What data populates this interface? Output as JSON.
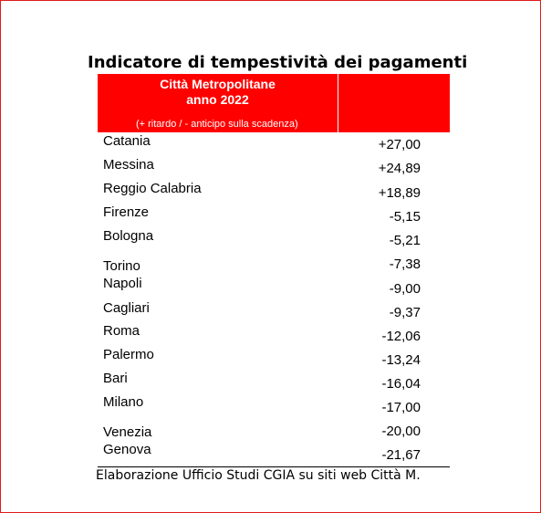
{
  "title": "Indicatore di tempestività dei pagamenti",
  "header": {
    "line1": "Città Metropolitane",
    "line2": "anno 2022",
    "line3": "(+ ritardo / - anticipo sulla scadenza)",
    "bg_color": "#ff0000"
  },
  "rows": [
    {
      "city": "Catania",
      "value": "+27,00"
    },
    {
      "city": "Messina",
      "value": "+24,89"
    },
    {
      "city": "Reggio Calabria",
      "value": "+18,89"
    },
    {
      "city": "Firenze",
      "value": "-5,15"
    },
    {
      "city": "Bologna",
      "value": "-5,21"
    },
    {
      "city": "Torino",
      "value": "-7,38"
    },
    {
      "city": "Napoli",
      "value": "-9,00"
    },
    {
      "city": "Cagliari",
      "value": "-9,37"
    },
    {
      "city": "Roma",
      "value": "-12,06"
    },
    {
      "city": "Palermo",
      "value": "-13,24"
    },
    {
      "city": "Bari",
      "value": "-16,04"
    },
    {
      "city": "Milano",
      "value": "-17,00"
    },
    {
      "city": "Venezia",
      "value": "-20,00"
    },
    {
      "city": "Genova",
      "value": "-21,67"
    }
  ],
  "footer": "Elaborazione Ufficio Studi CGIA su siti web Città M."
}
